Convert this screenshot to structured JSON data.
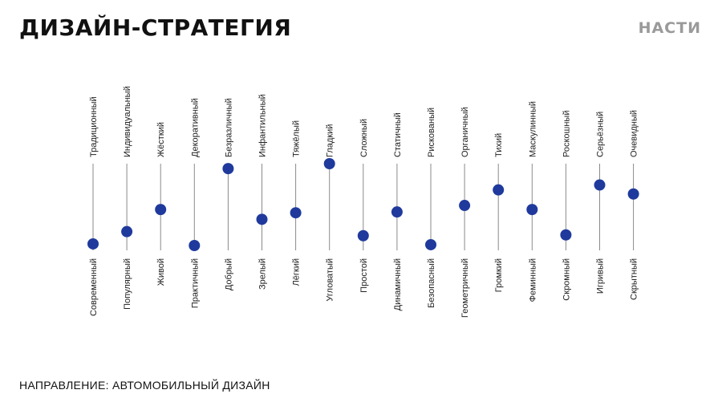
{
  "header": {
    "title": "ДИЗАЙН-СТРАТЕГИЯ",
    "logo": "НАСТИ"
  },
  "footer": {
    "direction": "НАПРАВЛЕНИЕ: АВТОМОБИЛЬНЫЙ ДИЗАЙН"
  },
  "colors": {
    "dot": "#1f3a9c",
    "line": "#8a8a8a"
  },
  "scales": [
    {
      "top": "Традиционный",
      "bottom": "Современный",
      "value": 0.02
    },
    {
      "top": "Индивидуальный",
      "bottom": "Популярный",
      "value": 0.17
    },
    {
      "top": "Жёсткий",
      "bottom": "Живой",
      "value": 0.44
    },
    {
      "top": "Декоративный",
      "bottom": "Практичный",
      "value": 0.0
    },
    {
      "top": "Безразличный",
      "bottom": "Добрый",
      "value": 0.94
    },
    {
      "top": "Инфантильный",
      "bottom": "Зрелый",
      "value": 0.32
    },
    {
      "top": "Тяжёлый",
      "bottom": "Лёгкий",
      "value": 0.4
    },
    {
      "top": "Гладкий",
      "bottom": "Угловатый",
      "value": 1.0
    },
    {
      "top": "Сложный",
      "bottom": "Простой",
      "value": 0.12
    },
    {
      "top": "Статичный",
      "bottom": "Динамичный",
      "value": 0.41
    },
    {
      "top": "Рискованый",
      "bottom": "Безопасный",
      "value": 0.01
    },
    {
      "top": "Органичный",
      "bottom": "Геометричный",
      "value": 0.49
    },
    {
      "top": "Тихий",
      "bottom": "Громкий",
      "value": 0.68
    },
    {
      "top": "Маскулинный",
      "bottom": "Феминный",
      "value": 0.44
    },
    {
      "top": "Роскошный",
      "bottom": "Скромный",
      "value": 0.13
    },
    {
      "top": "Серьёзный",
      "bottom": "Игривый",
      "value": 0.74
    },
    {
      "top": "Очевидный",
      "bottom": "Скрытный",
      "value": 0.63
    }
  ]
}
